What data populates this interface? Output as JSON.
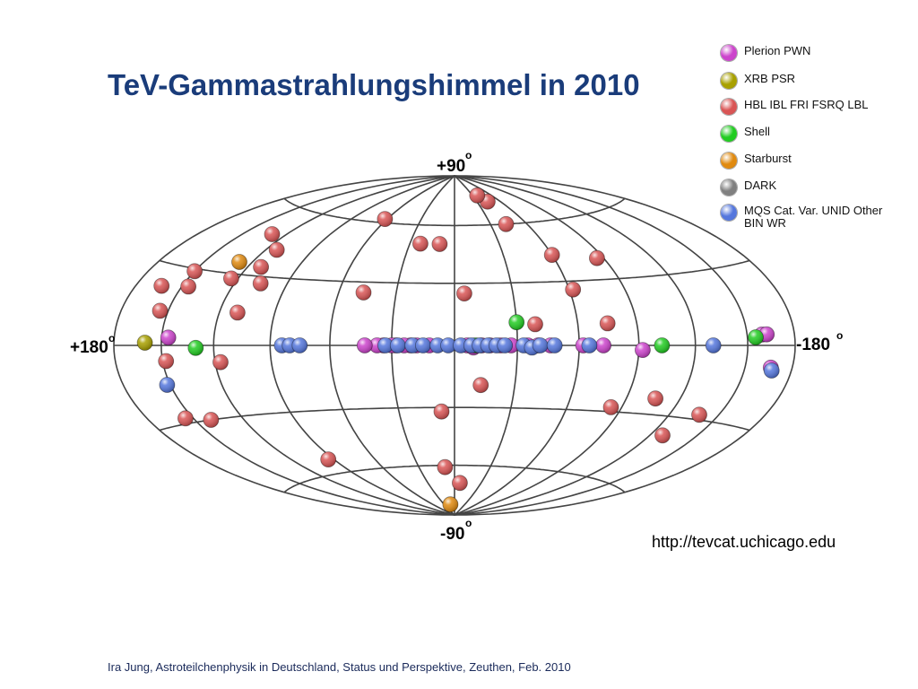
{
  "title": "TeV-Gammastrahlungshimmel in 2010",
  "url": "http://tevcat.uchicago.edu",
  "footer": "Ira Jung, Astroteilchenphysik in Deutschland, Status und Perspektive, Zeuthen, Feb. 2010",
  "legend": [
    {
      "label": "Plerion PWN",
      "color": "#cc44cc"
    },
    {
      "label": "XRB PSR",
      "color": "#a8a000"
    },
    {
      "label": "HBL IBL FRI FSRQ LBL",
      "color": "#d95555"
    },
    {
      "label": "Shell",
      "color": "#22cc22"
    },
    {
      "label": "Starburst",
      "color": "#e08a10"
    },
    {
      "label": "DARK",
      "color": "#808080"
    },
    {
      "label": "MQS Cat. Var. UNID Other BIN WR",
      "color": "#5577dd"
    }
  ],
  "chart_data": {
    "type": "scatter",
    "projection": "hammer-aitoff",
    "title": "TeV-Gammastrahlungshimmel in 2010",
    "axis_labels": {
      "top": "+90",
      "bottom": "-90",
      "left": "+180",
      "right": "-180",
      "degree_symbol": "o"
    },
    "xlim": [
      180,
      -180
    ],
    "ylim": [
      -90,
      90
    ],
    "grid": true,
    "legend_position": "top-right",
    "series": [
      {
        "name": "Plerion PWN",
        "color": "#cc44cc",
        "points": [
          [
            146,
            3
          ],
          [
            -159,
            4
          ],
          [
            -166,
            -8
          ],
          [
            12,
            0
          ],
          [
            18,
            0
          ],
          [
            21,
            0
          ],
          [
            24,
            0
          ],
          [
            28,
            0
          ],
          [
            30,
            0
          ],
          [
            34,
            0
          ],
          [
            37,
            0
          ],
          [
            43,
            0
          ],
          [
            -6,
            0
          ],
          [
            -9,
            -1
          ],
          [
            -13,
            0
          ],
          [
            -17,
            0
          ],
          [
            -22,
            0
          ],
          [
            -27,
            0
          ],
          [
            -35,
            0
          ],
          [
            -40,
            0
          ],
          [
            -46,
            0
          ],
          [
            -62,
            0
          ],
          [
            -72,
            0
          ],
          [
            -92,
            -2
          ],
          [
            -162,
            4
          ]
        ]
      },
      {
        "name": "XRB PSR",
        "color": "#a8a000",
        "points": [
          [
            160,
            1
          ]
        ]
      },
      {
        "name": "HBL IBL FRI FSRQ LBL",
        "color": "#d95555",
        "points": [
          [
            -44,
            73
          ],
          [
            -38,
            77
          ],
          [
            62,
            62
          ],
          [
            -43,
            60
          ],
          [
            10,
            50
          ],
          [
            23,
            50
          ],
          [
            -60,
            43
          ],
          [
            130,
            48
          ],
          [
            113,
            42
          ],
          [
            112,
            34
          ],
          [
            150,
            29
          ],
          [
            163,
            22
          ],
          [
            124,
            28
          ],
          [
            105,
            27
          ],
          [
            146,
            23
          ],
          [
            47,
            25
          ],
          [
            -62,
            26
          ],
          [
            -86,
            40
          ],
          [
            155,
            13
          ],
          [
            110,
            14
          ],
          [
            -75,
            10
          ],
          [
            -39,
            10
          ],
          [
            -5,
            25
          ],
          [
            148,
            -6
          ],
          [
            117,
            -7
          ],
          [
            -13,
            -19
          ],
          [
            -106,
            -23
          ],
          [
            -138,
            -28
          ],
          [
            -84,
            -28
          ],
          [
            155,
            -28
          ],
          [
            140,
            -30
          ],
          [
            7,
            -32
          ],
          [
            -128,
            -38
          ],
          [
            94,
            -53
          ],
          [
            8,
            -61
          ],
          [
            -6,
            -70
          ]
        ]
      },
      {
        "name": "Shell",
        "color": "#22cc22",
        "points": [
          [
            -30,
            11
          ],
          [
            -102,
            0
          ],
          [
            -155,
            3
          ],
          [
            130,
            -1
          ],
          [
            -10,
            0
          ]
        ]
      },
      {
        "name": "Starburst",
        "color": "#e08a10",
        "points": [
          [
            128,
            35
          ],
          [
            12,
            -83
          ]
        ]
      },
      {
        "name": "MQS Cat. Var. UNID Other BIN WR",
        "color": "#5577dd",
        "points": [
          [
            152,
            -15
          ],
          [
            84,
            0
          ],
          [
            80,
            0
          ],
          [
            75,
            0
          ],
          [
            33,
            0
          ],
          [
            27,
            0
          ],
          [
            20,
            0
          ],
          [
            15,
            0
          ],
          [
            8,
            0
          ],
          [
            3,
            0
          ],
          [
            -3,
            0
          ],
          [
            -8,
            0
          ],
          [
            -12,
            0
          ],
          [
            -16,
            0
          ],
          [
            -20,
            0
          ],
          [
            -24,
            0
          ],
          [
            -33,
            0
          ],
          [
            -37,
            -1
          ],
          [
            -41,
            0
          ],
          [
            -48,
            0
          ],
          [
            -65,
            0
          ],
          [
            -130,
            0
          ],
          [
            -167,
            -9
          ]
        ]
      }
    ]
  }
}
